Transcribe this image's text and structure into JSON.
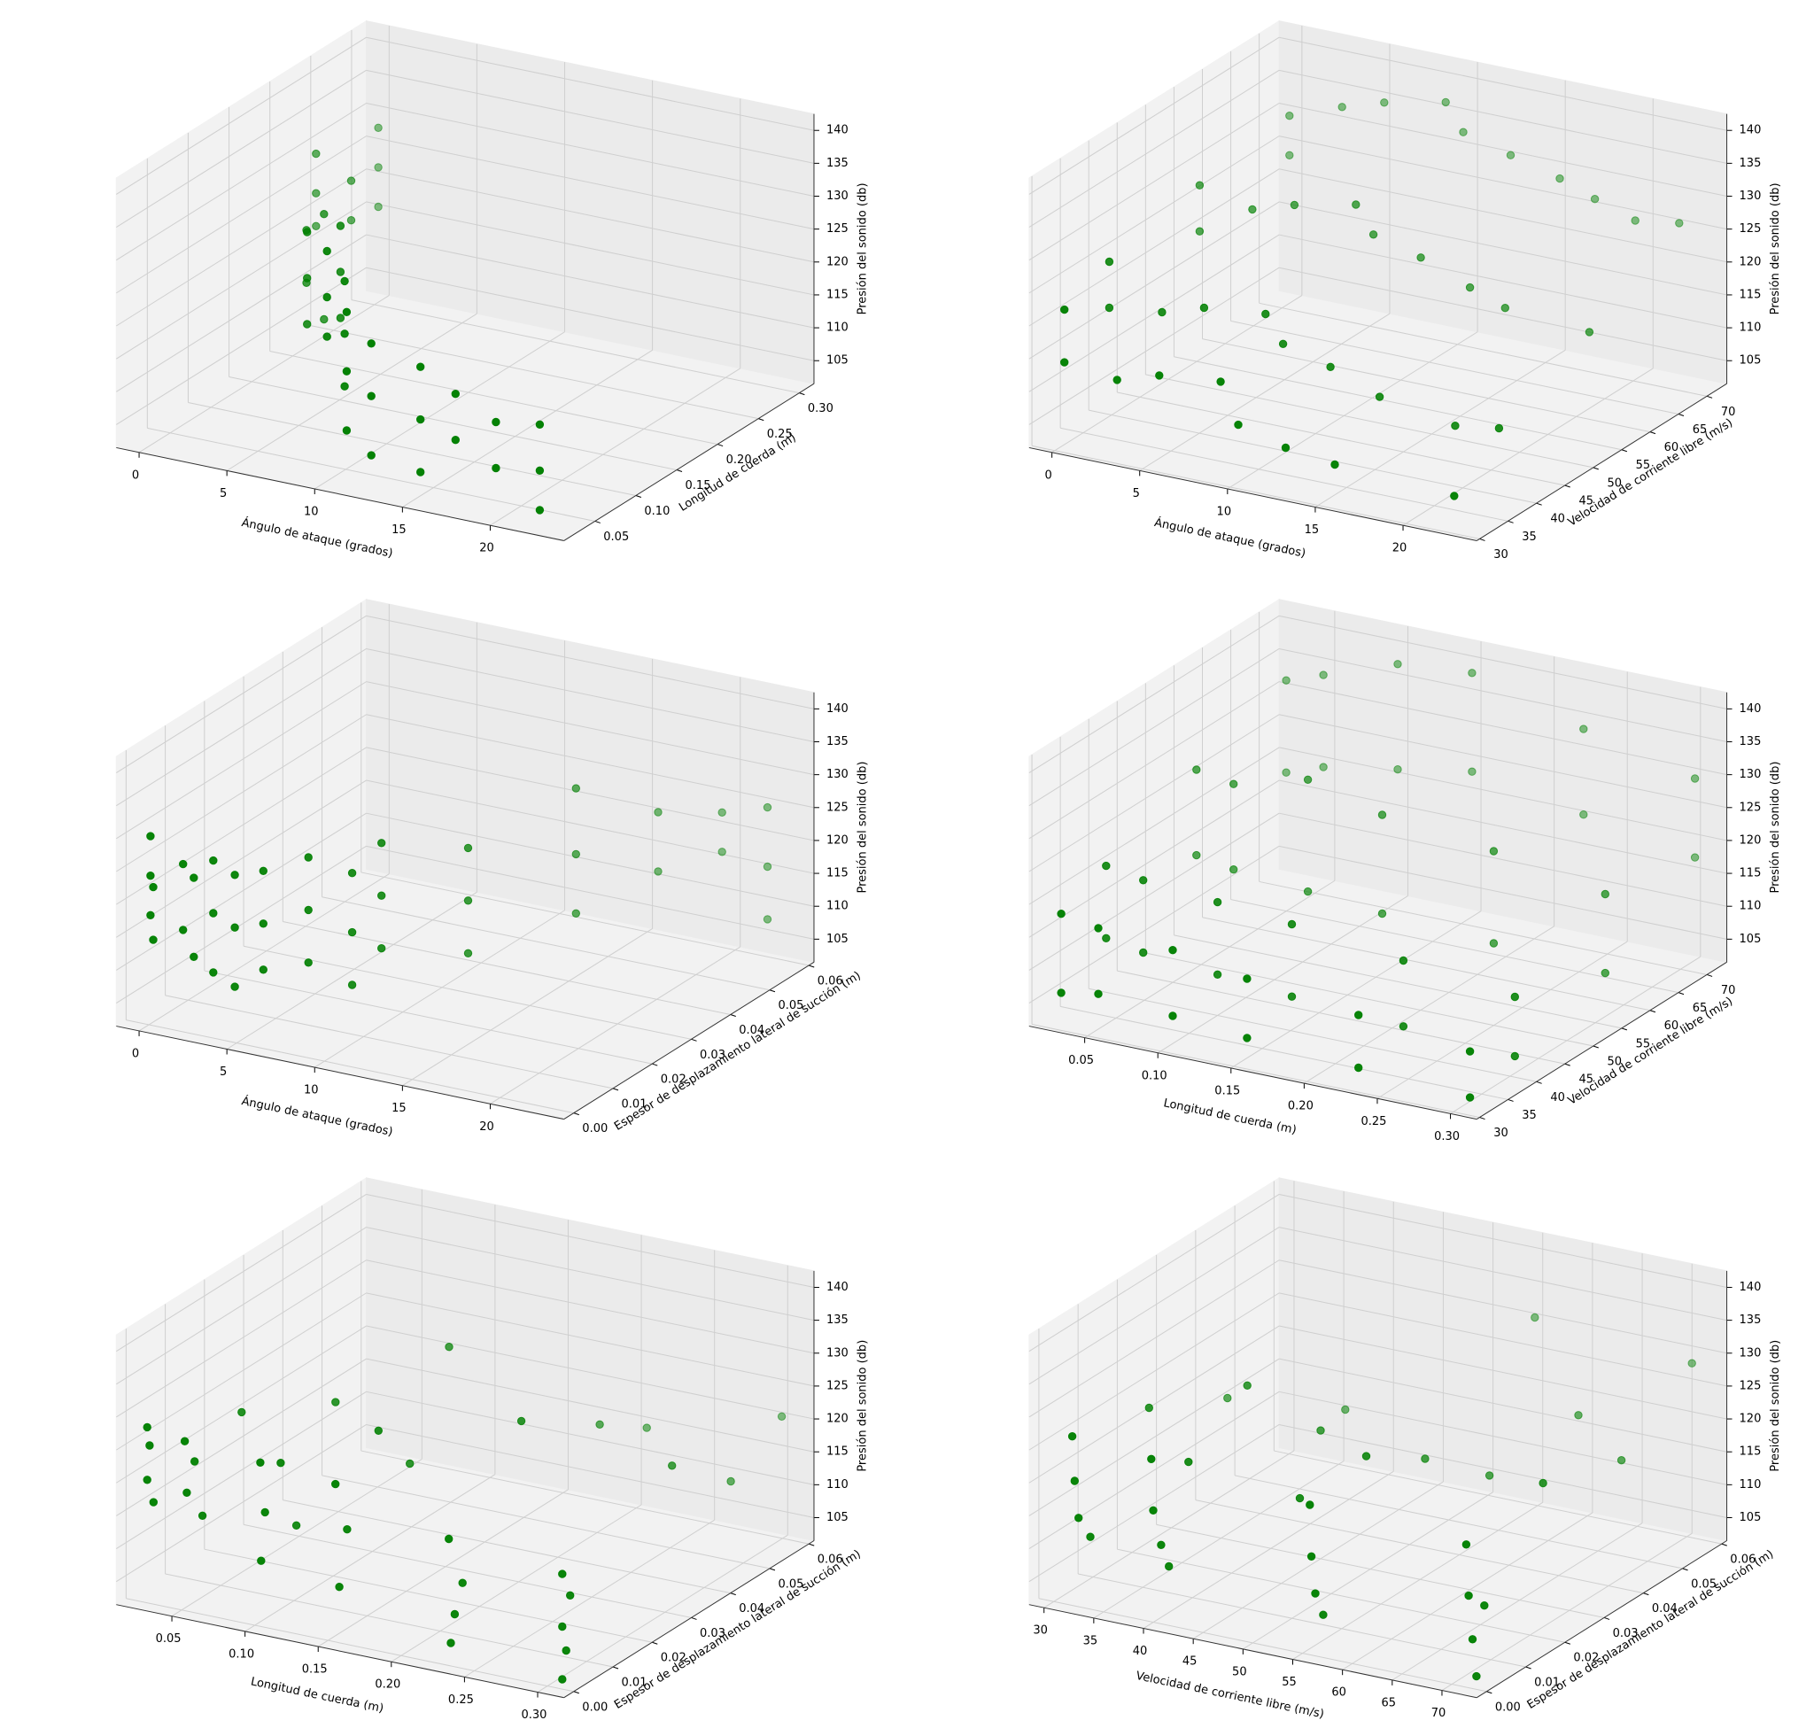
{
  "chart_data": [
    {
      "type": "scatter3d",
      "color": "#008000",
      "xlabel": "Ángulo de ataque (grados)",
      "ylabel": "Longitud de cuerda (m)",
      "zlabel": "Presión del sonido (db)",
      "xlim": [
        -1.3,
        24.2
      ],
      "ylim": [
        0.012,
        0.318
      ],
      "zlim": [
        101.5,
        142.5
      ],
      "xticks": [
        0,
        5,
        10,
        15,
        20
      ],
      "yticks": [
        0.05,
        {
          "value": 0.1,
          "label": "0.10"
        },
        0.15,
        {
          "value": 0.2,
          "label": "0.20"
        },
        0.25,
        {
          "value": 0.3,
          "label": "0.30"
        }
      ],
      "zticks": [
        105,
        110,
        115,
        120,
        125,
        130,
        135,
        140
      ],
      "x": [
        0,
        0,
        0,
        0,
        0,
        0,
        2,
        2,
        3,
        3,
        4,
        4,
        5.4,
        5.4,
        5.4,
        7.3,
        7.3,
        7.3,
        8.9,
        8.9,
        8.9,
        9.9,
        9.9,
        9.9,
        11.2,
        11.2,
        11.2,
        12.6,
        12.6,
        12.6,
        15.4,
        15.4,
        15.4,
        17.4,
        17.4,
        19.7,
        19.7,
        22.2,
        22.2,
        22.2
      ],
      "y": [
        0.3048,
        0.3048,
        0.3048,
        0.2286,
        0.2286,
        0.2286,
        0.2286,
        0.2286,
        0.1524,
        0.1524,
        0.1524,
        0.1524,
        0.1016,
        0.1016,
        0.1016,
        0.1016,
        0.1016,
        0.1016,
        0.0508,
        0.0508,
        0.0508,
        0.0508,
        0.0508,
        0.0508,
        0.0254,
        0.0254,
        0.0254,
        0.0254,
        0.0254,
        0.0254,
        0.0254,
        0.0254,
        0.0254,
        0.0254,
        0.0254,
        0.0254,
        0.0254,
        0.0254,
        0.0254,
        0.0254
      ],
      "z": [
        128,
        122,
        116,
        130,
        124,
        119,
        127,
        121,
        126,
        118,
        129,
        113,
        131,
        124,
        117,
        133,
        126,
        119,
        134,
        127,
        121,
        130,
        122,
        114,
        128,
        119,
        110,
        124,
        116,
        107,
        122,
        114,
        106,
        119,
        112,
        116,
        109,
        117,
        110,
        104
      ]
    },
    {
      "type": "scatter3d",
      "color": "#008000",
      "xlabel": "Ángulo de ataque (grados)",
      "ylabel": "Velocidad de corriente libre (m/s)",
      "zlabel": "Presión del sonido (db)",
      "xlim": [
        -1.3,
        24.2
      ],
      "ylim": [
        29.5,
        73.5
      ],
      "zlim": [
        101.5,
        142.5
      ],
      "xticks": [
        0,
        5,
        10,
        15,
        20
      ],
      "yticks": [
        30,
        35,
        40,
        45,
        50,
        55,
        60,
        65,
        70
      ],
      "zticks": [
        105,
        110,
        115,
        120,
        125,
        130,
        135,
        140
      ],
      "x": [
        0,
        0,
        0,
        0,
        0,
        0,
        0,
        0,
        3,
        3,
        3,
        3,
        5.4,
        5.4,
        5.4,
        5.4,
        8.9,
        8.9,
        8.9,
        8.9,
        9.9,
        9.9,
        9.9,
        9.9,
        12.6,
        12.6,
        12.6,
        12.6,
        15.4,
        15.4,
        15.4,
        15.4,
        17.4,
        17.4,
        19.7,
        19.7,
        22.2,
        22.2,
        22.2,
        22.2
      ],
      "y": [
        71.3,
        71.3,
        55.5,
        55.5,
        39.6,
        39.6,
        31.7,
        31.7,
        71.3,
        55.5,
        39.6,
        31.7,
        71.3,
        55.5,
        39.6,
        31.7,
        71.3,
        55.5,
        39.6,
        31.7,
        71.3,
        55.5,
        39.6,
        31.7,
        71.3,
        55.5,
        39.6,
        31.7,
        71.3,
        55.5,
        39.6,
        31.7,
        71.3,
        55.5,
        71.3,
        39.6,
        71.3,
        55.5,
        39.6,
        31.7
      ],
      "z": [
        130,
        124,
        128,
        121,
        125,
        118,
        122,
        114,
        133,
        126,
        119,
        113,
        135,
        128,
        121,
        115,
        137,
        130,
        122,
        116,
        133,
        126,
        118,
        110,
        131,
        124,
        116,
        108,
        129,
        121,
        113,
        107,
        127,
        119,
        125,
        111,
        126,
        118,
        112,
        106
      ]
    },
    {
      "type": "scatter3d",
      "color": "#008000",
      "xlabel": "Ángulo de ataque (grados)",
      "ylabel": "Espesor de desplazamiento lateral de succión (m)",
      "zlabel": "Presión del sonido (db)",
      "xlim": [
        -1.3,
        24.2
      ],
      "ylim": [
        -0.0025,
        0.0613
      ],
      "zlim": [
        101.5,
        142.5
      ],
      "xticks": [
        0,
        5,
        10,
        15,
        20
      ],
      "yticks": [
        {
          "value": 0,
          "label": "0.00"
        },
        0.01,
        0.02,
        0.03,
        0.04,
        0.05,
        0.06
      ],
      "zticks": [
        105,
        110,
        115,
        120,
        125,
        130,
        135,
        140
      ],
      "x": [
        0,
        0,
        0,
        0,
        0,
        1.5,
        1.5,
        2,
        2,
        3,
        3,
        3,
        4,
        4,
        4,
        5.4,
        5.4,
        5.4,
        7.3,
        7.3,
        7.3,
        8.9,
        8.9,
        8.9,
        9.9,
        9.9,
        9.9,
        12.6,
        12.6,
        12.6,
        15.4,
        15.4,
        15.4,
        17.4,
        17.4,
        19.7,
        19.7,
        22.2,
        22.2,
        22.2
      ],
      "y": [
        0.0004,
        0.0004,
        0.0004,
        0.0011,
        0.0011,
        0.002,
        0.002,
        0.0025,
        0.0025,
        0.003,
        0.003,
        0.003,
        0.004,
        0.004,
        0.004,
        0.005,
        0.005,
        0.005,
        0.008,
        0.008,
        0.008,
        0.012,
        0.012,
        0.012,
        0.015,
        0.015,
        0.015,
        0.025,
        0.025,
        0.025,
        0.04,
        0.04,
        0.04,
        0.052,
        0.052,
        0.058,
        0.058,
        0.0584,
        0.0584,
        0.0584
      ],
      "z": [
        130,
        124,
        118,
        122,
        114,
        126,
        116,
        124,
        112,
        127,
        119,
        110,
        125,
        117,
        108,
        126,
        118,
        111,
        128,
        120,
        112,
        125,
        116,
        108,
        129,
        121,
        113,
        126,
        118,
        110,
        131,
        121,
        112,
        124,
        115,
        123,
        117,
        125,
        116,
        108
      ]
    },
    {
      "type": "scatter3d",
      "color": "#008000",
      "xlabel": "Longitud de cuerda (m)",
      "ylabel": "Velocidad de corriente libre (m/s)",
      "zlabel": "Presión del sonido (db)",
      "xlim": [
        0.012,
        0.318
      ],
      "ylim": [
        29.5,
        73.5
      ],
      "zlim": [
        101.5,
        142.5
      ],
      "xticks": [
        0.05,
        {
          "value": 0.1,
          "label": "0.10"
        },
        0.15,
        {
          "value": 0.2,
          "label": "0.20"
        },
        0.25,
        {
          "value": 0.3,
          "label": "0.30"
        }
      ],
      "yticks": [
        30,
        35,
        40,
        45,
        50,
        55,
        60,
        65,
        70
      ],
      "zticks": [
        105,
        110,
        115,
        120,
        125,
        130,
        135,
        140
      ],
      "x": [
        0.0254,
        0.0254,
        0.0254,
        0.0254,
        0.0254,
        0.0254,
        0.0254,
        0.0254,
        0.0508,
        0.0508,
        0.0508,
        0.0508,
        0.0508,
        0.0508,
        0.0508,
        0.0508,
        0.1016,
        0.1016,
        0.1016,
        0.1016,
        0.1016,
        0.1016,
        0.1016,
        0.1016,
        0.1524,
        0.1524,
        0.1524,
        0.1524,
        0.1524,
        0.1524,
        0.1524,
        0.1524,
        0.2286,
        0.2286,
        0.2286,
        0.2286,
        0.2286,
        0.2286,
        0.2286,
        0.2286,
        0.3048,
        0.3048,
        0.3048,
        0.3048,
        0.3048,
        0.3048,
        0.3048,
        0.3048
      ],
      "y": [
        31.7,
        31.7,
        39.6,
        39.6,
        55.5,
        55.5,
        71.3,
        71.3,
        31.7,
        31.7,
        39.6,
        39.6,
        55.5,
        55.5,
        71.3,
        71.3,
        31.7,
        31.7,
        39.6,
        39.6,
        55.5,
        55.5,
        71.3,
        71.3,
        31.7,
        31.7,
        39.6,
        39.6,
        55.5,
        55.5,
        71.3,
        71.3,
        31.7,
        31.7,
        39.6,
        39.6,
        55.5,
        55.5,
        71.3,
        71.3,
        31.7,
        31.7,
        39.6,
        39.6,
        55.5,
        55.5,
        71.3,
        71.3
      ],
      "z": [
        118,
        106,
        121,
        110,
        127,
        114,
        132,
        118,
        117,
        107,
        120,
        109,
        126,
        113,
        134,
        120,
        116,
        106,
        119,
        108,
        129,
        112,
        138,
        122,
        114,
        105,
        118,
        107,
        126,
        111,
        139,
        124,
        112,
        104,
        116,
        106,
        124,
        110,
        134,
        121,
        110,
        103,
        114,
        105,
        121,
        109,
        130,
        118
      ]
    },
    {
      "type": "scatter3d",
      "color": "#008000",
      "xlabel": "Longitud de cuerda (m)",
      "ylabel": "Espesor de desplazamiento lateral de succión (m)",
      "zlabel": "Presión del sonido (db)",
      "xlim": [
        0.012,
        0.318
      ],
      "ylim": [
        -0.0025,
        0.0613
      ],
      "zlim": [
        101.5,
        142.5
      ],
      "xticks": [
        0.05,
        {
          "value": 0.1,
          "label": "0.10"
        },
        0.15,
        {
          "value": 0.2,
          "label": "0.20"
        },
        0.25,
        {
          "value": 0.3,
          "label": "0.30"
        }
      ],
      "yticks": [
        {
          "value": 0,
          "label": "0.00"
        },
        0.01,
        0.02,
        0.03,
        0.04,
        0.05,
        0.06
      ],
      "zticks": [
        105,
        110,
        115,
        120,
        125,
        130,
        135,
        140
      ],
      "x": [
        0.0254,
        0.0254,
        0.0254,
        0.0254,
        0.0508,
        0.0508,
        0.0508,
        0.0508,
        0.1016,
        0.1016,
        0.1016,
        0.1016,
        0.1524,
        0.1524,
        0.1524,
        0.1524,
        0.2286,
        0.2286,
        0.2286,
        0.2286,
        0.2286,
        0.3048,
        0.3048,
        0.3048,
        0.3048,
        0.3048,
        0.3048,
        0.3048,
        0.1524,
        0.1016,
        0.0508,
        0.2286,
        0.2286,
        0.3048,
        0.1524,
        0.1016
      ],
      "y": [
        0.0004,
        0.0004,
        0.001,
        0.002,
        0.0005,
        0.001,
        0.003,
        0.005,
        0.0008,
        0.002,
        0.006,
        0.01,
        0.001,
        0.004,
        0.012,
        0.02,
        0.0015,
        0.005,
        0.02,
        0.04,
        0.052,
        0.002,
        0.002,
        0.003,
        0.004,
        0.03,
        0.045,
        0.058,
        0.03,
        0.02,
        0.015,
        0.003,
        0.002,
        0.002,
        0.002,
        0.001
      ],
      "z": [
        128,
        120,
        125,
        116,
        127,
        119,
        123,
        114,
        126,
        118,
        124,
        113,
        125,
        117,
        129,
        121,
        120,
        112,
        131,
        123,
        118,
        118,
        110,
        106,
        114,
        124,
        116,
        121,
        135,
        128,
        126,
        108,
        104,
        102,
        109,
        111
      ]
    },
    {
      "type": "scatter3d",
      "color": "#008000",
      "xlabel": "Velocidad de corriente libre (m/s)",
      "ylabel": "Espesor de desplazamiento lateral de succión (m)",
      "zlabel": "Presión del sonido (db)",
      "xlim": [
        28.5,
        73.5
      ],
      "ylim": [
        -0.0025,
        0.0613
      ],
      "zlim": [
        101.5,
        142.5
      ],
      "xticks": [
        30,
        35,
        40,
        45,
        50,
        55,
        60,
        65,
        70
      ],
      "yticks": [
        {
          "value": 0,
          "label": "0.00"
        },
        0.01,
        0.02,
        0.03,
        0.04,
        0.05,
        0.06
      ],
      "zticks": [
        105,
        110,
        115,
        120,
        125,
        130,
        135,
        140
      ],
      "x": [
        31.7,
        31.7,
        31.7,
        31.7,
        31.7,
        31.7,
        39.6,
        39.6,
        39.6,
        39.6,
        39.6,
        39.6,
        39.6,
        55.5,
        55.5,
        55.5,
        55.5,
        55.5,
        55.5,
        55.5,
        71.3,
        71.3,
        71.3,
        71.3,
        71.3,
        71.3,
        71.3,
        71.3,
        45,
        60,
        65,
        50
      ],
      "y": [
        0.0004,
        0.001,
        0.002,
        0.005,
        0.02,
        0.04,
        0.0005,
        0.001,
        0.003,
        0.005,
        0.01,
        0.025,
        0.05,
        0.0006,
        0.001,
        0.002,
        0.004,
        0.015,
        0.03,
        0.058,
        0.0004,
        0.001,
        0.002,
        0.003,
        0.005,
        0.02,
        0.04,
        0.058,
        0.03,
        0.035,
        0.045,
        0.012
      ],
      "z": [
        127,
        120,
        114,
        110,
        124,
        118,
        126,
        118,
        112,
        108,
        122,
        128,
        115,
        124,
        116,
        110,
        106,
        126,
        120,
        131,
        123,
        115,
        108,
        102,
        112,
        125,
        121,
        129,
        121,
        117,
        124,
        119
      ]
    }
  ]
}
